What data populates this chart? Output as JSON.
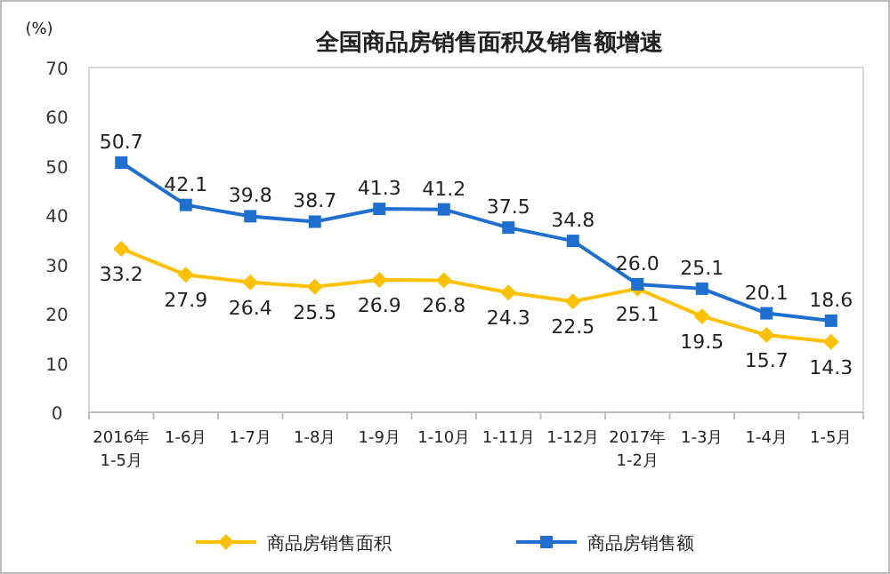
{
  "chart_data": {
    "type": "line",
    "title": "全国商品房销售面积及销售额增速",
    "ylabel": "(%)",
    "categories": [
      "2016年\n1-5月",
      "1-6月",
      "1-7月",
      "1-8月",
      "1-9月",
      "1-10月",
      "1-11月",
      "1-12月",
      "2017年\n1-2月",
      "1-3月",
      "1-4月",
      "1-5月"
    ],
    "series": [
      {
        "name": "商品房销售面积",
        "color": "#ffc000",
        "marker": "diamond",
        "values": [
          33.2,
          27.9,
          26.4,
          25.5,
          26.9,
          26.8,
          24.3,
          22.5,
          25.1,
          19.5,
          15.7,
          14.3
        ],
        "value_labels": [
          "33.2",
          "27.9",
          "26.4",
          "25.5",
          "26.9",
          "26.8",
          "24.3",
          "22.5",
          "25.1",
          "19.5",
          "15.7",
          "14.3"
        ]
      },
      {
        "name": "商品房销售额",
        "color": "#1f6fd0",
        "marker": "square",
        "values": [
          50.7,
          42.1,
          39.8,
          38.7,
          41.3,
          41.2,
          37.5,
          34.8,
          26.0,
          25.1,
          20.1,
          18.6
        ],
        "value_labels": [
          "50.7",
          "42.1",
          "39.8",
          "38.7",
          "41.3",
          "41.2",
          "37.5",
          "34.8",
          "26.0",
          "25.1",
          "20.1",
          "18.6"
        ]
      }
    ],
    "ylim": [
      0,
      70
    ],
    "yticks": [
      0,
      10,
      20,
      30,
      40,
      50,
      60,
      70
    ],
    "legend": "bottom",
    "grid": false
  }
}
